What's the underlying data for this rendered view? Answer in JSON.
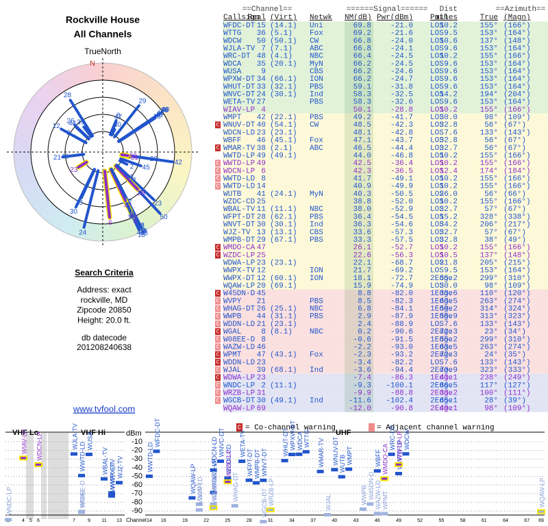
{
  "header": {
    "title": "Rockville House",
    "subtitle": "All Channels"
  },
  "polar": {
    "label": "TrueNorth",
    "north": "N"
  },
  "criteria": {
    "title": "Search Criteria",
    "lines": [
      "Address: exact",
      "rockville, MD",
      "Zipcode 20850",
      "Height: 20.0 ft."
    ],
    "db_label": "db datecode",
    "db_code": "201208240638"
  },
  "link": "www.tvfool.com",
  "legend": {
    "mark": "C",
    "co": "= Co-channel warning",
    "adj": "= Adjacent channel warning",
    "co_color": "#c62828",
    "adj_color": "#f08c8c"
  },
  "table": {
    "header_top": [
      "==Channel==",
      "======Signal======",
      "Dist",
      "==Azimuth=="
    ],
    "header": [
      "Callsign",
      "Real",
      "(Virt)",
      "Netwk",
      "NM(dB)",
      "Pwr(dBm)",
      "Path",
      "miles",
      "True",
      "(Magn)"
    ],
    "color": "#2255cc",
    "groups": [
      {
        "bg": "#e2f2d8",
        "rows": [
          {
            "cs": "WFDC-DT",
            "ch": "15",
            "virt": "(14.1)",
            "net": "Uni",
            "nm": "69.8",
            "pwr": "-21.0",
            "path": "LOS",
            "dist": "10.2",
            "az": "155°",
            "mag": "(166°)"
          },
          {
            "cs": "WTTG",
            "ch": "36",
            "virt": "(5.1)",
            "net": "Fox",
            "nm": "69.2",
            "pwr": "-21.6",
            "path": "LOS",
            "dist": "9.5",
            "az": "153°",
            "mag": "(164°)"
          },
          {
            "cs": "WDCW",
            "ch": "50",
            "virt": "(50.1)",
            "net": "CW",
            "nm": "66.8",
            "pwr": "-24.0",
            "path": "LOS",
            "dist": "10.6",
            "az": "137°",
            "mag": "(148°)"
          },
          {
            "cs": "WJLA-TV",
            "ch": "7",
            "virt": "(7.1)",
            "net": "ABC",
            "nm": "66.8",
            "pwr": "-24.1",
            "path": "LOS",
            "dist": "9.6",
            "az": "153°",
            "mag": "(164°)"
          },
          {
            "cs": "WRC-DT",
            "ch": "48",
            "virt": "(4.1)",
            "net": "NBC",
            "nm": "66.4",
            "pwr": "-24.5",
            "path": "LOS",
            "dist": "10.2",
            "az": "155°",
            "mag": "(166°)"
          },
          {
            "cs": "WDCA",
            "ch": "35",
            "virt": "(20.1)",
            "net": "MyN",
            "nm": "66.2",
            "pwr": "-24.5",
            "path": "LOS",
            "dist": "9.6",
            "az": "153°",
            "mag": "(164°)"
          },
          {
            "cs": "WUSA",
            "ch": "9",
            "net": "CBS",
            "nm": "66.2",
            "pwr": "-24.6",
            "path": "LOS",
            "dist": "9.6",
            "az": "153°",
            "mag": "(164°)"
          },
          {
            "cs": "WPXW-DT",
            "ch": "34",
            "virt": "(66.1)",
            "net": "ION",
            "nm": "66.2",
            "pwr": "-24.7",
            "path": "LOS",
            "dist": "9.6",
            "az": "153°",
            "mag": "(164°)"
          },
          {
            "cs": "WHUT-DT",
            "ch": "33",
            "virt": "(32.1)",
            "net": "PBS",
            "nm": "59.1",
            "pwr": "-31.8",
            "path": "LOS",
            "dist": "9.6",
            "az": "153°",
            "mag": "(164°)"
          },
          {
            "cs": "WNVC-DT",
            "ch": "24",
            "virt": "(30.1)",
            "net": "Ind",
            "nm": "58.3",
            "pwr": "-32.5",
            "path": "LOS",
            "dist": "14.2",
            "az": "194°",
            "mag": "(204°)"
          },
          {
            "cs": "WETA-TV",
            "ch": "27",
            "net": "PBS",
            "nm": "58.3",
            "pwr": "-32.6",
            "path": "LOS",
            "dist": "9.6",
            "az": "153°",
            "mag": "(164°)"
          },
          {
            "cs": "WIAV-LP",
            "ch": "4",
            "nm": "50.1",
            "pwr": "-28.8",
            "path": "LOS",
            "dist": "10.2",
            "az": "155°",
            "mag": "(166°)",
            "color": "#8b2fc9"
          }
        ]
      },
      {
        "bg": "#fdf9d8",
        "rows": [
          {
            "cs": "WMPT",
            "ch": "42",
            "virt": "(22.1)",
            "net": "PBS",
            "nm": "49.2",
            "pwr": "-41.7",
            "path": "LOS",
            "dist": "30.0",
            "az": "98°",
            "mag": "(109°)"
          },
          {
            "cs": "WNUV-DT",
            "ch": "40",
            "virt": "(54.1)",
            "net": "CW",
            "nm": "48.5",
            "pwr": "-42.3",
            "path": "LOS",
            "dist": "32.8",
            "az": "56°",
            "mag": "(67°)",
            "flag": "#c62828"
          },
          {
            "cs": "WDCN-LD",
            "ch": "23",
            "virt": "(23.1)",
            "nm": "48.1",
            "pwr": "-42.8",
            "path": "LOS",
            "dist": "7.6",
            "az": "133°",
            "mag": "(143°)"
          },
          {
            "cs": "WBFF",
            "ch": "46",
            "virt": "(45.1)",
            "net": "Fox",
            "nm": "47.1",
            "pwr": "-43.7",
            "path": "LOS",
            "dist": "32.8",
            "az": "56°",
            "mag": "(67°)"
          },
          {
            "cs": "WMAR-TV",
            "ch": "38",
            "virt": "(2.1)",
            "net": "ABC",
            "nm": "46.5",
            "pwr": "-44.4",
            "path": "LOS",
            "dist": "32.7",
            "az": "56°",
            "mag": "(67°)",
            "flag": "#c62828"
          },
          {
            "cs": "WWTD-LP",
            "ch": "49",
            "virt": "(49.1)",
            "nm": "44.0",
            "pwr": "-46.8",
            "path": "LOS",
            "dist": "10.2",
            "az": "155°",
            "mag": "(166°)"
          },
          {
            "cs": "WWTD-LP",
            "ch": "49",
            "nm": "42.5",
            "pwr": "-36.4",
            "path": "LOS",
            "dist": "10.2",
            "az": "155°",
            "mag": "(166°)",
            "color": "#8b2fc9",
            "flag": "#f08c8c"
          },
          {
            "cs": "WDCN-LP",
            "ch": "6",
            "nm": "42.3",
            "pwr": "-36.5",
            "path": "LOS",
            "dist": "12.4",
            "az": "174°",
            "mag": "(184°)",
            "color": "#8b2fc9",
            "flag": "#f08c8c"
          },
          {
            "cs": "WWTD-LD",
            "ch": "8",
            "nm": "41.7",
            "pwr": "-49.1",
            "path": "LOS",
            "dist": "10.2",
            "az": "155°",
            "mag": "(166°)",
            "flag": "#f08c8c"
          },
          {
            "cs": "WWTD-LD",
            "ch": "14",
            "nm": "40.9",
            "pwr": "-49.9",
            "path": "LOS",
            "dist": "10.2",
            "az": "155°",
            "mag": "(166°)",
            "flag": "#f08c8c"
          },
          {
            "cs": "WUTB",
            "ch": "41",
            "virt": "(24.1)",
            "net": "MyN",
            "nm": "40.3",
            "pwr": "-50.5",
            "path": "LOS",
            "dist": "26.0",
            "az": "56°",
            "mag": "(66°)"
          },
          {
            "cs": "WZDC-CD",
            "ch": "25",
            "nm": "38.8",
            "pwr": "-52.0",
            "path": "LOS",
            "dist": "10.2",
            "az": "155°",
            "mag": "(166°)"
          },
          {
            "cs": "WBAL-TV",
            "ch": "11",
            "virt": "(11.1)",
            "net": "NBC",
            "nm": "38.0",
            "pwr": "-52.9",
            "path": "LOS",
            "dist": "32.7",
            "az": "57°",
            "mag": "(67°)"
          },
          {
            "cs": "WFPT-DT",
            "ch": "28",
            "virt": "(62.1)",
            "net": "PBS",
            "nm": "36.4",
            "pwr": "-54.5",
            "path": "LOS",
            "dist": "15.2",
            "az": "328°",
            "mag": "(338°)"
          },
          {
            "cs": "WNVT-DT",
            "ch": "30",
            "virt": "(30.1)",
            "net": "Ind",
            "nm": "36.3",
            "pwr": "-54.6",
            "path": "LOS",
            "dist": "34.2",
            "az": "206°",
            "mag": "(217°)"
          },
          {
            "cs": "WJZ-TV",
            "ch": "13",
            "virt": "(13.1)",
            "net": "CBS",
            "nm": "33.6",
            "pwr": "-57.3",
            "path": "LOS",
            "dist": "32.7",
            "az": "57°",
            "mag": "(67°)"
          },
          {
            "cs": "WMPB-DT",
            "ch": "29",
            "virt": "(67.1)",
            "net": "PBS",
            "nm": "33.3",
            "pwr": "-57.5",
            "path": "LOS",
            "dist": "32.8",
            "az": "38°",
            "mag": "(49°)"
          },
          {
            "cs": "WMDO-CA",
            "ch": "47",
            "nm": "26.1",
            "pwr": "-52.7",
            "path": "LOS",
            "dist": "10.2",
            "az": "155°",
            "mag": "(166°)",
            "color": "#8b2fc9",
            "flag": "#c62828"
          },
          {
            "cs": "WZDC-LP",
            "ch": "25",
            "nm": "22.6",
            "pwr": "-56.3",
            "path": "LOS",
            "dist": "10.5",
            "az": "137°",
            "mag": "(148°)",
            "color": "#8b2fc9",
            "flag": "#c62828"
          },
          {
            "cs": "WDWA-LP",
            "ch": "23",
            "virt": "(23.1)",
            "nm": "22.1",
            "pwr": "-68.7",
            "path": "LOS",
            "dist": "21.8",
            "az": "205°",
            "mag": "(215°)"
          },
          {
            "cs": "WWPX-TV",
            "ch": "12",
            "net": "ION",
            "nm": "21.7",
            "pwr": "-69.2",
            "path": "LOS",
            "dist": "9.5",
            "az": "153°",
            "mag": "(164°)"
          },
          {
            "cs": "WWPX-DT",
            "ch": "12",
            "virt": "(60.1)",
            "net": "ION",
            "nm": "18.1",
            "pwr": "-72.7",
            "path": "2Edge",
            "dist": "55.2",
            "az": "299°",
            "mag": "(310°)"
          },
          {
            "cs": "WQAW-LP",
            "ch": "20",
            "virt": "(69.1)",
            "nm": "15.9",
            "pwr": "-74.9",
            "path": "LOS",
            "dist": "30.0",
            "az": "98°",
            "mag": "(109°)"
          }
        ]
      },
      {
        "bg": "#fbe0e0",
        "rows": [
          {
            "cs": "W45DN-D",
            "ch": "45",
            "nm": "8.8",
            "pwr": "-82.0",
            "path": "1Edge",
            "dist": "33.6",
            "az": "110°",
            "mag": "(120°)",
            "flag": "#c62828"
          },
          {
            "cs": "WVPY",
            "ch": "21",
            "net": "PBS",
            "nm": "8.5",
            "pwr": "-82.3",
            "path": "1Edge",
            "dist": "63.5",
            "az": "263°",
            "mag": "(274°)",
            "flag": "#f08c8c"
          },
          {
            "cs": "WHAG-DT",
            "ch": "26",
            "virt": "(25.1)",
            "net": "NBC",
            "nm": "6.8",
            "pwr": "-84.1",
            "path": "1Edge",
            "dist": "59.2",
            "az": "314°",
            "mag": "(324°)",
            "flag": "#f08c8c"
          },
          {
            "cs": "WWPB",
            "ch": "44",
            "virt": "(31.1)",
            "net": "PBS",
            "nm": "2.9",
            "pwr": "-87.9",
            "path": "1Edge",
            "dist": "58.9",
            "az": "313°",
            "mag": "(323°)",
            "flag": "#f08c8c"
          },
          {
            "cs": "WDDN-LD",
            "ch": "21",
            "virt": "(23.1)",
            "nm": "2.4",
            "pwr": "-88.9",
            "path": "LOS",
            "dist": "7.6",
            "az": "133°",
            "mag": "(143°)",
            "flag": "#f08c8c"
          },
          {
            "cs": "WGAL",
            "ch": "8",
            "virt": "(8.1)",
            "net": "NBC",
            "nm": "0.2",
            "pwr": "-90.6",
            "path": "2Edge",
            "dist": "72.3",
            "az": "23°",
            "mag": "(34°)",
            "flag": "#c62828"
          },
          {
            "cs": "W08EE-D",
            "ch": "8",
            "nm": "-0.6",
            "pwr": "-91.5",
            "path": "1Edge",
            "dist": "55.2",
            "az": "299°",
            "mag": "(310°)",
            "flag": "#f08c8c"
          },
          {
            "cs": "WAZW-LD",
            "ch": "46",
            "nm": "-2.2",
            "pwr": "-93.0",
            "path": "1Edge",
            "dist": "63.5",
            "az": "263°",
            "mag": "(274°)",
            "flag": "#f08c8c"
          },
          {
            "cs": "WPMT",
            "ch": "47",
            "virt": "(43.1)",
            "net": "Fox",
            "nm": "-2.3",
            "pwr": "-93.2",
            "path": "2Edge",
            "dist": "72.3",
            "az": "24°",
            "mag": "(35°)",
            "flag": "#c62828"
          },
          {
            "cs": "WDDN-LD",
            "ch": "23",
            "nm": "-3.4",
            "pwr": "-82.2",
            "path": "LOS",
            "dist": "7.6",
            "az": "133°",
            "mag": "(143°)",
            "flag": "#c62828"
          },
          {
            "cs": "WJAL",
            "ch": "39",
            "virt": "(68.1)",
            "net": "Ind",
            "nm": "-3.6",
            "pwr": "-94.4",
            "path": "2Edge",
            "dist": "70.9",
            "az": "323°",
            "mag": "(333°)",
            "flag": "#f08c8c"
          }
        ]
      },
      {
        "bg": "#e2e4f4",
        "rows": [
          {
            "cs": "WDWA-LP",
            "ch": "23",
            "nm": "-7.4",
            "pwr": "-86.3",
            "path": "1Edge",
            "dist": "43.1",
            "az": "238°",
            "mag": "(249°)",
            "color": "#8b2fc9",
            "flag": "#c62828"
          },
          {
            "cs": "WNDC-LP",
            "ch": "2",
            "virt": "(11.1)",
            "nm": "-9.3",
            "pwr": "-100.1",
            "path": "2Edge",
            "dist": "86.5",
            "az": "117°",
            "mag": "(127°)",
            "flag": "#f08c8c"
          },
          {
            "cs": "WRZB-LP",
            "ch": "31",
            "nm": "-9.9",
            "pwr": "-88.8",
            "path": "2Edge",
            "dist": "33.2",
            "az": "100°",
            "mag": "(111°)",
            "color": "#8b2fc9",
            "flag": "#f08c8c"
          },
          {
            "cs": "WGCB-DT",
            "ch": "30",
            "virt": "(49.1)",
            "net": "Ind",
            "nm": "-11.6",
            "pwr": "-102.4",
            "path": "2Edge",
            "dist": "65.1",
            "az": "28°",
            "mag": "(39°)",
            "flag": "#f08c8c"
          },
          {
            "cs": "WQAW-LP",
            "ch": "69",
            "nm": "-12.0",
            "pwr": "-90.8",
            "path": "2Edge",
            "dist": "49.1",
            "az": "98°",
            "mag": "(109°)",
            "color": "#8b2fc9"
          }
        ]
      }
    ]
  },
  "spectrum": {
    "vhf_lo": "VHF Lo",
    "vhf_hi": "VHF Hi",
    "uhf": "UHF",
    "unit": "dBm",
    "axis": "Channel",
    "dbm_ticks": [
      -10,
      -20,
      -30,
      -40,
      -50,
      -60,
      -70,
      -80,
      -90
    ],
    "channels": [
      2,
      4,
      5,
      6,
      7,
      9,
      11,
      13,
      14,
      16,
      19,
      22,
      25,
      28,
      31,
      34,
      37,
      40,
      43,
      46,
      49,
      52,
      55,
      58,
      61,
      64,
      67,
      69
    ]
  }
}
